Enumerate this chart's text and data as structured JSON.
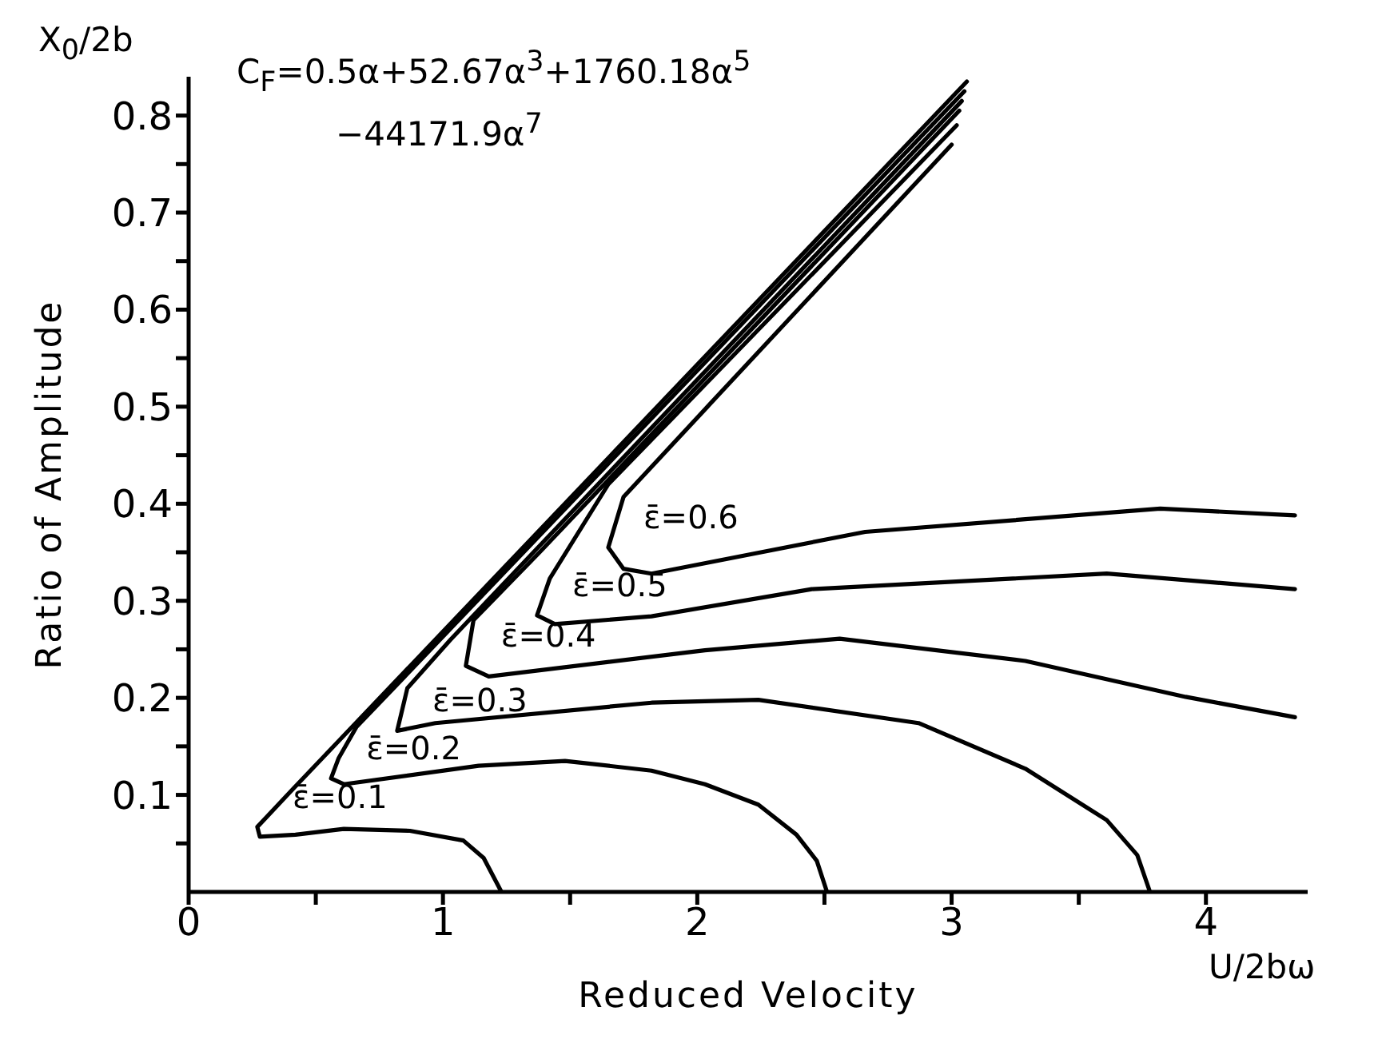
{
  "chart_data": {
    "type": "line",
    "xlabel": "Reduced Velocity",
    "ylabel": "Ratio of Amplitude",
    "xlim": [
      0,
      4.4
    ],
    "ylim": [
      0,
      0.84
    ],
    "xticks": [
      0,
      {
        "value": 0.5,
        "label": null
      },
      1,
      {
        "value": 1.5,
        "label": null
      },
      2,
      {
        "value": 2.5,
        "label": null
      },
      3,
      {
        "value": 3.5,
        "label": null
      },
      4
    ],
    "yticks": [
      {
        "value": 0.05,
        "label": null
      },
      0.1,
      {
        "value": 0.15,
        "label": null
      },
      0.2,
      {
        "value": 0.25,
        "label": null
      },
      0.3,
      {
        "value": 0.35,
        "label": null
      },
      0.4,
      {
        "value": 0.45,
        "label": null
      },
      0.5,
      {
        "value": 0.55,
        "label": null
      },
      0.6,
      {
        "value": 0.65,
        "label": null
      },
      0.7,
      {
        "value": 0.75,
        "label": null
      },
      0.8
    ],
    "grid": false,
    "legend": false,
    "marker": "none",
    "line_style": "solid",
    "tick_labels": "xy",
    "series": [
      {
        "name": "ε̄=0.1",
        "color": "#000000",
        "x": [
          1.23,
          1.16,
          1.08,
          0.87,
          0.61,
          0.42,
          0.28,
          0.27,
          0.41,
          3.06
        ],
        "values": [
          0,
          0.035,
          0.053,
          0.063,
          0.065,
          0.059,
          0.057,
          0.067,
          0.106,
          0.835
        ]
      },
      {
        "name": "ε̄=0.2",
        "color": "#000000",
        "x": [
          2.51,
          2.47,
          2.39,
          2.24,
          2.03,
          1.82,
          1.48,
          1.14,
          0.61,
          0.56,
          0.59,
          0.66,
          3.05
        ],
        "values": [
          0,
          0.032,
          0.059,
          0.09,
          0.111,
          0.125,
          0.135,
          0.13,
          0.111,
          0.117,
          0.138,
          0.17,
          0.825
        ]
      },
      {
        "name": "ε̄=0.3",
        "color": "#000000",
        "x": [
          3.78,
          3.73,
          3.61,
          3.29,
          2.87,
          2.24,
          1.82,
          0.97,
          0.82,
          0.86,
          1.03,
          3.04
        ],
        "values": [
          0,
          0.038,
          0.074,
          0.127,
          0.174,
          0.198,
          0.195,
          0.174,
          0.166,
          0.21,
          0.26,
          0.815
        ]
      },
      {
        "name": "ε̄=0.4",
        "color": "#000000",
        "x": [
          4.35,
          3.92,
          3.29,
          2.56,
          2.03,
          1.18,
          1.09,
          1.12,
          1.38,
          3.03
        ],
        "values": [
          0.18,
          0.201,
          0.238,
          0.261,
          0.249,
          0.222,
          0.233,
          0.28,
          0.35,
          0.805
        ]
      },
      {
        "name": "ε̄=0.5",
        "color": "#000000",
        "x": [
          4.35,
          3.61,
          2.45,
          1.82,
          1.44,
          1.37,
          1.42,
          1.65,
          3.02
        ],
        "values": [
          0.312,
          0.328,
          0.312,
          0.284,
          0.276,
          0.285,
          0.323,
          0.42,
          0.79
        ]
      },
      {
        "name": "ε̄=0.6",
        "color": "#000000",
        "x": [
          4.35,
          3.82,
          2.66,
          1.82,
          1.71,
          1.65,
          1.71,
          2.04,
          3.0
        ],
        "values": [
          0.388,
          0.395,
          0.371,
          0.328,
          0.333,
          0.355,
          0.407,
          0.5,
          0.77
        ]
      }
    ],
    "annotations": [
      "C$_{F}$=0.5α+52.67α$^{3}$+1760.18α$^{5}$\n−44171.9α$^{7}$",
      "X$_{0}$/2b",
      "U/2bω"
    ]
  }
}
